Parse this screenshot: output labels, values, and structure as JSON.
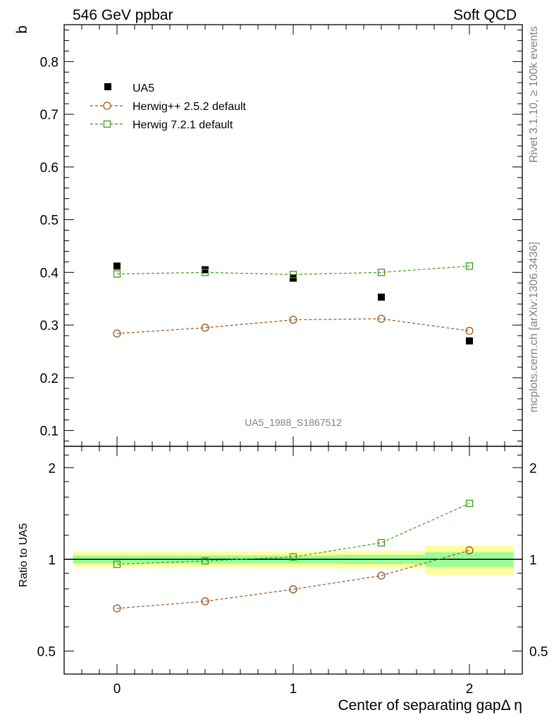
{
  "header": {
    "left_title": "546 GeV ppbar",
    "right_title": "Soft QCD"
  },
  "side_text": {
    "rivet": "Rivet 3.1.10, ≥ 100k events",
    "mcplots": "mcplots.cern.ch [arXiv:1306.3436]"
  },
  "colors": {
    "data": "#000000",
    "herwigpp": "#a0521a",
    "herwig7": "#3c9a1a",
    "band_outer": "#ffff99",
    "band_inner": "#99ff99"
  },
  "chart_data": [
    {
      "type": "scatter",
      "panel": "main",
      "ylabel": "b",
      "ylim": [
        0.07,
        0.87
      ],
      "xlim": [
        -0.3,
        2.3
      ],
      "yticks": [
        "0.1",
        "0.2",
        "0.3",
        "0.4",
        "0.5",
        "0.6",
        "0.7",
        "0.8"
      ],
      "watermark": "UA5_1988_S1867512",
      "legend_position": "top-left",
      "x": [
        0,
        0.5,
        1,
        1.5,
        2
      ],
      "series": [
        {
          "name": "UA5",
          "marker": "filled-square",
          "values": [
            0.412,
            0.405,
            0.389,
            0.353,
            0.27
          ]
        },
        {
          "name": "Herwig++ 2.5.2 default",
          "marker": "open-circle",
          "line": "dashed",
          "values": [
            0.284,
            0.295,
            0.31,
            0.312,
            0.289
          ]
        },
        {
          "name": "Herwig 7.2.1 default",
          "marker": "open-square",
          "line": "dashed",
          "values": [
            0.397,
            0.4,
            0.396,
            0.4,
            0.412
          ]
        }
      ]
    },
    {
      "type": "line",
      "panel": "ratio",
      "ylabel": "Ratio to UA5",
      "xlabel": "Center of separating gapΔ η",
      "yscale": "log",
      "ylim": [
        0.42,
        2.35
      ],
      "xticks": [
        "0",
        "1",
        "2"
      ],
      "yticks": [
        "0.5",
        "1",
        "2"
      ],
      "x": [
        0,
        0.5,
        1,
        1.5,
        2
      ],
      "bands": {
        "edges": [
          -0.25,
          0.25,
          0.75,
          1.25,
          1.75,
          2.25
        ],
        "outer": [
          [
            0.945,
            1.06
          ],
          [
            0.945,
            1.06
          ],
          [
            0.94,
            1.06
          ],
          [
            0.935,
            1.065
          ],
          [
            0.89,
            1.11
          ]
        ],
        "inner": [
          [
            0.97,
            1.03
          ],
          [
            0.97,
            1.03
          ],
          [
            0.97,
            1.03
          ],
          [
            0.965,
            1.035
          ],
          [
            0.945,
            1.055
          ]
        ]
      },
      "series": [
        {
          "name": "Herwig++ 2.5.2 default",
          "values": [
            0.69,
            0.728,
            0.797,
            0.884,
            1.07
          ]
        },
        {
          "name": "Herwig 7.2.1 default",
          "values": [
            0.963,
            0.988,
            1.018,
            1.133,
            1.526
          ]
        }
      ]
    }
  ]
}
